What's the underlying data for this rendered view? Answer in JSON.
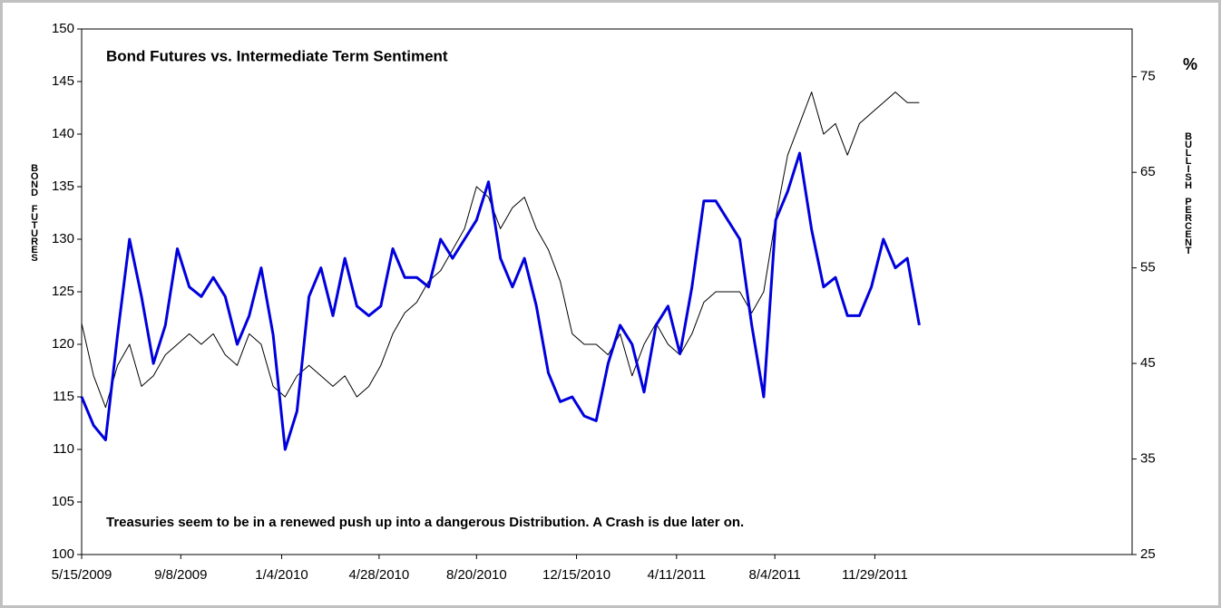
{
  "chart_data": {
    "type": "line",
    "title": "Bond Futures vs. Intermediate Term Sentiment",
    "annotation": "Treasuries seem to be in a renewed push up into a dangerous Distribution.  A Crash is due later on.",
    "y_label": "BOND FUTURES",
    "y2_label": "BULLISH PERCENT",
    "y2_unit": "%",
    "x": [
      "5/15/2009",
      "5/29/2009",
      "6/12/2009",
      "6/26/2009",
      "7/10/2009",
      "7/24/2009",
      "8/7/2009",
      "8/21/2009",
      "9/4/2009",
      "9/18/2009",
      "10/2/2009",
      "10/16/2009",
      "10/30/2009",
      "11/13/2009",
      "11/27/2009",
      "12/11/2009",
      "12/25/2009",
      "1/8/2010",
      "1/22/2010",
      "2/5/2010",
      "2/19/2010",
      "3/5/2010",
      "3/19/2010",
      "4/2/2010",
      "4/16/2010",
      "4/30/2010",
      "5/14/2010",
      "5/28/2010",
      "6/11/2010",
      "6/25/2010",
      "7/9/2010",
      "7/23/2010",
      "8/6/2010",
      "8/20/2010",
      "9/3/2010",
      "9/17/2010",
      "10/1/2010",
      "10/15/2010",
      "10/29/2010",
      "11/12/2010",
      "11/26/2010",
      "12/10/2010",
      "12/24/2010",
      "1/7/2011",
      "1/21/2011",
      "2/4/2011",
      "2/18/2011",
      "3/4/2011",
      "3/18/2011",
      "4/1/2011",
      "4/15/2011",
      "4/29/2011",
      "5/13/2011",
      "5/27/2011",
      "6/10/2011",
      "6/24/2011",
      "7/8/2011",
      "7/22/2011",
      "8/5/2011",
      "8/19/2011",
      "9/2/2011",
      "9/16/2011",
      "9/30/2011",
      "10/14/2011",
      "10/28/2011",
      "11/11/2011",
      "11/25/2011",
      "12/9/2011",
      "12/23/2011",
      "1/6/2012",
      "1/20/2012"
    ],
    "series": [
      {
        "name": "Bond Futures",
        "color": "#000000",
        "axis": "y",
        "values": [
          122,
          117,
          114,
          118,
          120,
          116,
          117,
          119,
          120,
          121,
          120,
          121,
          119,
          118,
          121,
          120,
          116,
          115,
          117,
          118,
          117,
          116,
          117,
          115,
          116,
          118,
          121,
          123,
          124,
          126,
          127,
          129,
          131,
          135,
          134,
          131,
          133,
          134,
          131,
          129,
          126,
          121,
          120,
          120,
          119,
          121,
          117,
          120,
          122,
          120,
          119,
          121,
          124,
          125,
          125,
          125,
          123,
          125,
          132,
          138,
          141,
          144,
          140,
          141,
          138,
          141,
          142,
          143,
          144,
          143,
          143
        ]
      },
      {
        "name": "Bullish Percent",
        "color": "#0000dd",
        "axis": "y2",
        "values": [
          41.5,
          38.5,
          37,
          48,
          58,
          52,
          45,
          49,
          57,
          53,
          52,
          54,
          52,
          47,
          50,
          55,
          48,
          36,
          40,
          52,
          55,
          50,
          56,
          51,
          50,
          51,
          57,
          54,
          54,
          53,
          58,
          56,
          58,
          60,
          64,
          56,
          53,
          56,
          51,
          44,
          41,
          41.5,
          39.5,
          39,
          45,
          49,
          47,
          42,
          49,
          51,
          46,
          53,
          62,
          62,
          60,
          58,
          49,
          41.5,
          60,
          63,
          67,
          59,
          53,
          54,
          50,
          50,
          53,
          58,
          55,
          56,
          49
        ]
      }
    ],
    "xlim": [
      "5/15/2009",
      "9/25/2012"
    ],
    "xticks": [
      "5/15/2009",
      "9/8/2009",
      "1/4/2010",
      "4/28/2010",
      "8/20/2010",
      "12/15/2010",
      "4/11/2011",
      "8/4/2011",
      "11/29/2011"
    ],
    "ylim": [
      100,
      150
    ],
    "yticks": [
      100,
      105,
      110,
      115,
      120,
      125,
      130,
      135,
      140,
      145,
      150
    ],
    "y2lim": [
      25,
      80
    ],
    "y2ticks": [
      25,
      35,
      45,
      55,
      65,
      75
    ]
  }
}
